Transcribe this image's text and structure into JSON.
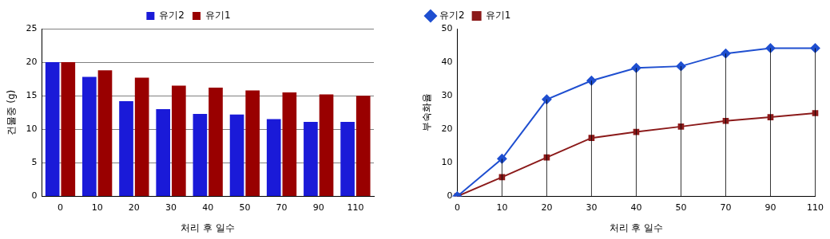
{
  "chart_data": [
    {
      "type": "bar",
      "x_label": "처리 후 일수",
      "y_label": "건물중 (g)",
      "categories": [
        "0",
        "10",
        "20",
        "30",
        "40",
        "50",
        "70",
        "90",
        "110"
      ],
      "series": [
        {
          "name": "유기2",
          "color": "#1a1ad8",
          "values": [
            20,
            17.8,
            14.2,
            13.0,
            12.3,
            12.2,
            11.5,
            11.1,
            11.1
          ]
        },
        {
          "name": "유기1",
          "color": "#990000",
          "values": [
            20,
            18.8,
            17.7,
            16.5,
            16.2,
            15.8,
            15.5,
            15.2,
            15.0
          ]
        }
      ],
      "ylim": [
        0,
        25
      ],
      "yticks": [
        0,
        5,
        10,
        15,
        20,
        25
      ],
      "grid": true,
      "legend": "top"
    },
    {
      "type": "line",
      "x_label": "처리 후 일수",
      "y_label": "부숙화율",
      "categories": [
        "0",
        "10",
        "20",
        "30",
        "40",
        "50",
        "70",
        "90",
        "110"
      ],
      "series": [
        {
          "name": "유기2",
          "color": "#1f4fd0",
          "marker": "diamond",
          "values": [
            0,
            11.2,
            28.9,
            34.5,
            38.3,
            38.8,
            42.6,
            44.2,
            44.2
          ]
        },
        {
          "name": "유기1",
          "color": "#8b1a1a",
          "marker": "square",
          "values": [
            0,
            5.7,
            11.6,
            17.4,
            19.2,
            20.8,
            22.5,
            23.6,
            24.8
          ]
        }
      ],
      "ylim": [
        0,
        50
      ],
      "yticks": [
        0,
        10,
        20,
        30,
        40,
        50
      ],
      "grid": false,
      "legend": "top-left"
    }
  ]
}
